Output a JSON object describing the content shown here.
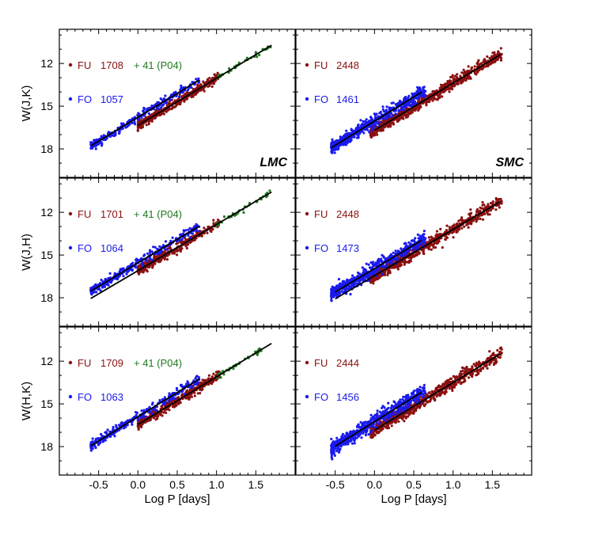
{
  "chart_data": {
    "type": "scatter",
    "x_label": "Log P [days]",
    "x_range": [
      -1.0,
      2.0
    ],
    "y_range": [
      20.0,
      9.6
    ],
    "x_ticks": [
      "-0.5",
      "0.0",
      "0.5",
      "1.0",
      "1.5"
    ],
    "y_ticks": [
      "12",
      "15",
      "18"
    ],
    "colors": {
      "fu": "#8b1010",
      "fo": "#1a1aee",
      "p04": "#1f7a1f",
      "line": "#000000"
    },
    "panels": [
      {
        "id": "lmc-wjk",
        "galaxy": "LMC",
        "ylabel": "W(J,K)",
        "fu_label": "FU",
        "fu_count": "1708",
        "fo_label": "FO",
        "fo_count": "1057",
        "extra_label": "+ 41 (P04)",
        "fu": {
          "xmin": 0.0,
          "xmax": 1.05,
          "a": 16.35,
          "b": -3.31,
          "scatter": 0.14,
          "n": 420
        },
        "fo": {
          "xmin": -0.6,
          "xmax": 0.78,
          "a": 15.78,
          "b": -3.35,
          "scatter": 0.14,
          "n": 300
        },
        "p04": {
          "xmin": 1.0,
          "xmax": 1.7,
          "a": 16.35,
          "b": -3.31,
          "scatter": 0.08,
          "n": 41
        },
        "fit_fu": [
          0.0,
          1.7,
          16.35,
          -3.31
        ],
        "fit_fo": [
          -0.6,
          0.78,
          15.78,
          -3.35
        ]
      },
      {
        "id": "smc-wjk",
        "galaxy": "SMC",
        "ylabel": "W(J,K)",
        "fu_label": "FU",
        "fu_count": "2448",
        "fo_label": "FO",
        "fo_count": "1461",
        "fu": {
          "xmin": -0.05,
          "xmax": 1.62,
          "a": 16.7,
          "b": -3.32,
          "scatter": 0.2,
          "n": 700
        },
        "fo": {
          "xmin": -0.55,
          "xmax": 0.65,
          "a": 16.05,
          "b": -3.4,
          "scatter": 0.22,
          "n": 600
        },
        "fit_fu": [
          0.0,
          1.6,
          16.7,
          -3.32
        ],
        "fit_fo": [
          -0.55,
          0.6,
          16.05,
          -3.4
        ]
      },
      {
        "id": "lmc-wjh",
        "galaxy": "",
        "ylabel": "W(J,H)",
        "fu_label": "FU",
        "fu_count": "1701",
        "fo_label": "FO",
        "fo_count": "1064",
        "extra_label": "+ 41 (P04)",
        "fu": {
          "xmin": 0.0,
          "xmax": 1.05,
          "a": 16.1,
          "b": -3.25,
          "scatter": 0.16,
          "n": 420
        },
        "fo": {
          "xmin": -0.6,
          "xmax": 0.78,
          "a": 15.55,
          "b": -3.3,
          "scatter": 0.16,
          "n": 300
        },
        "p04": {
          "xmin": 1.0,
          "xmax": 1.7,
          "a": 16.1,
          "b": -3.25,
          "scatter": 0.08,
          "n": 41
        },
        "fit_fu": [
          -0.6,
          1.7,
          16.1,
          -3.25
        ],
        "fit_fo": [
          -0.6,
          0.78,
          15.55,
          -3.3
        ]
      },
      {
        "id": "smc-wjh",
        "galaxy": "",
        "ylabel": "W(J,H)",
        "fu_label": "FU",
        "fu_count": "2448",
        "fo_label": "FO",
        "fo_count": "1473",
        "fu": {
          "xmin": -0.05,
          "xmax": 1.62,
          "a": 16.45,
          "b": -3.25,
          "scatter": 0.22,
          "n": 700
        },
        "fo": {
          "xmin": -0.55,
          "xmax": 0.65,
          "a": 15.95,
          "b": -3.3,
          "scatter": 0.24,
          "n": 600
        },
        "fit_fu": [
          -0.5,
          1.6,
          16.45,
          -3.25
        ],
        "fit_fo": [
          -0.5,
          0.6,
          15.95,
          -3.3
        ]
      },
      {
        "id": "lmc-whk",
        "galaxy": "",
        "ylabel": "W(H,K)",
        "fu_label": "FU",
        "fu_count": "1709",
        "fo_label": "FO",
        "fo_count": "1063",
        "extra_label": "+ 41 (P04)",
        "fu": {
          "xmin": 0.0,
          "xmax": 1.05,
          "a": 16.45,
          "b": -3.35,
          "scatter": 0.16,
          "n": 420
        },
        "fo": {
          "xmin": -0.6,
          "xmax": 0.78,
          "a": 15.9,
          "b": -3.4,
          "scatter": 0.16,
          "n": 300
        },
        "p04": {
          "xmin": 1.0,
          "xmax": 1.7,
          "a": 16.45,
          "b": -3.35,
          "scatter": 0.08,
          "n": 41
        },
        "fit_fu": [
          0.0,
          1.7,
          16.45,
          -3.35
        ],
        "fit_fo": [
          -0.6,
          0.78,
          15.9,
          -3.4
        ]
      },
      {
        "id": "smc-whk",
        "galaxy": "",
        "ylabel": "W(H,K)",
        "fu_label": "FU",
        "fu_count": "2444",
        "fo_label": "FO",
        "fo_count": "1456",
        "fu": {
          "xmin": -0.05,
          "xmax": 1.62,
          "a": 16.85,
          "b": -3.35,
          "scatter": 0.22,
          "n": 700
        },
        "fo": {
          "xmin": -0.55,
          "xmax": 0.65,
          "a": 16.25,
          "b": -3.45,
          "scatter": 0.26,
          "n": 600
        },
        "fit_fu": [
          0.0,
          1.6,
          16.85,
          -3.35
        ],
        "fit_fo": [
          -0.5,
          0.6,
          16.25,
          -3.45
        ]
      }
    ]
  }
}
